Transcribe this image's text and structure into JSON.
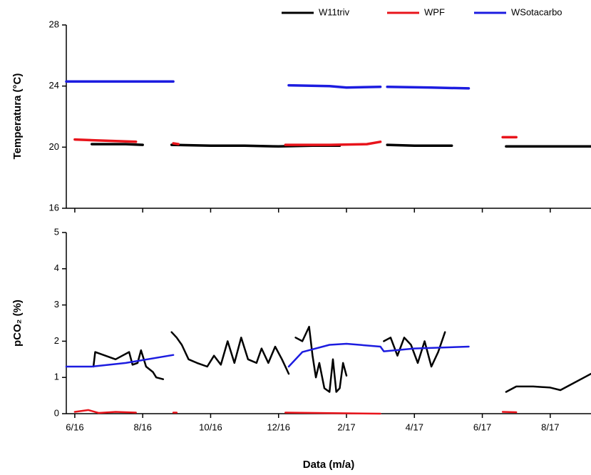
{
  "chart_data": [
    {
      "type": "line",
      "ylabel": "Temperatura (°C)",
      "xlim": [
        -0.25,
        15.2
      ],
      "xticks": [
        {
          "value": 0,
          "label": "6/16"
        },
        {
          "value": 2,
          "label": "8/16"
        },
        {
          "value": 4,
          "label": "10/16"
        },
        {
          "value": 6,
          "label": "12/16"
        },
        {
          "value": 8,
          "label": "2/17"
        },
        {
          "value": 10,
          "label": "4/17"
        },
        {
          "value": 12,
          "label": "6/17"
        },
        {
          "value": 14,
          "label": "8/17"
        }
      ],
      "ylim": [
        16,
        28
      ],
      "yticks": [
        16,
        20,
        24,
        28
      ],
      "legend": "top-right",
      "series": [
        {
          "name": "W11triv",
          "color": "#000000",
          "x": [
            0.5,
            1.0,
            1.5,
            2.0,
            2.4,
            2.85,
            4,
            5,
            6,
            7,
            7.8,
            8.5,
            9.2,
            10,
            11.1,
            12,
            12.7,
            14,
            15.2
          ],
          "values": [
            20.2,
            20.2,
            20.2,
            20.15,
            null,
            20.15,
            20.1,
            20.1,
            20.05,
            20.1,
            20.1,
            null,
            20.15,
            20.1,
            20.1,
            null,
            20.05,
            20.05,
            20.05
          ]
        },
        {
          "name": "WPF",
          "color": "#e8141b",
          "x": [
            0,
            0.6,
            1.2,
            1.8,
            2.4,
            2.9,
            3.05,
            4.5,
            6.2,
            7.5,
            8.6,
            9.0,
            10.5,
            12.6,
            13.0
          ],
          "values": [
            20.5,
            20.45,
            20.4,
            20.35,
            null,
            20.25,
            20.2,
            null,
            20.15,
            20.15,
            20.2,
            20.35,
            null,
            20.65,
            20.65
          ]
        },
        {
          "name": "WSotacarbo",
          "color": "#1c1ce0",
          "x": [
            -0.25,
            1.5,
            2.9,
            4.5,
            6.3,
            7.5,
            8.0,
            9.0,
            9.1,
            9.2,
            10.5,
            11.6
          ],
          "values": [
            24.3,
            24.3,
            24.3,
            null,
            24.05,
            24.0,
            23.9,
            23.95,
            null,
            23.95,
            23.9,
            23.85
          ]
        }
      ]
    },
    {
      "type": "line",
      "ylabel": "pCO₂ (%)",
      "xlabel": "Data (m/a)",
      "xlim": [
        -0.25,
        15.2
      ],
      "xticks": [
        {
          "value": 0,
          "label": "6/16"
        },
        {
          "value": 2,
          "label": "8/16"
        },
        {
          "value": 4,
          "label": "10/16"
        },
        {
          "value": 6,
          "label": "12/16"
        },
        {
          "value": 8,
          "label": "2/17"
        },
        {
          "value": 10,
          "label": "4/17"
        },
        {
          "value": 12,
          "label": "6/17"
        },
        {
          "value": 14,
          "label": "8/17"
        }
      ],
      "ylim": [
        0,
        5
      ],
      "yticks": [
        0,
        1,
        2,
        3,
        4,
        5
      ],
      "series": [
        {
          "name": "W11triv",
          "color": "#000000",
          "x": [
            0.55,
            0.6,
            0.9,
            1.2,
            1.4,
            1.6,
            1.7,
            1.85,
            1.95,
            2.1,
            2.3,
            2.4,
            2.6,
            2.7,
            2.85,
            3.0,
            3.15,
            3.35,
            3.6,
            3.9,
            4.1,
            4.3,
            4.5,
            4.7,
            4.9,
            5.1,
            5.35,
            5.5,
            5.7,
            5.9,
            6.1,
            6.2,
            6.3,
            6.4,
            6.5,
            6.7,
            6.9,
            7.0,
            7.1,
            7.2,
            7.35,
            7.5,
            7.6,
            7.7,
            7.8,
            7.9,
            8.0,
            8.5,
            9.1,
            9.3,
            9.5,
            9.7,
            9.9,
            10.1,
            10.3,
            10.5,
            10.7,
            10.9,
            12,
            12.7,
            13.0,
            13.5,
            14.0,
            14.3,
            14.6,
            15.0,
            15.2
          ],
          "values": [
            1.3,
            1.7,
            1.6,
            1.5,
            1.6,
            1.7,
            1.35,
            1.4,
            1.75,
            1.3,
            1.15,
            1.0,
            0.95,
            null,
            2.25,
            2.1,
            1.9,
            1.5,
            1.4,
            1.3,
            1.6,
            1.35,
            2.0,
            1.4,
            2.1,
            1.5,
            1.4,
            1.8,
            1.4,
            1.85,
            1.5,
            1.3,
            1.1,
            null,
            2.1,
            2.0,
            2.4,
            1.6,
            1.0,
            1.4,
            0.7,
            0.6,
            1.5,
            0.6,
            0.7,
            1.4,
            1.05,
            null,
            2.0,
            2.1,
            1.6,
            2.1,
            1.9,
            1.4,
            2.0,
            1.3,
            1.7,
            2.25,
            null,
            0.6,
            0.75,
            0.75,
            0.72,
            0.65,
            0.8,
            1.0,
            1.1
          ]
        },
        {
          "name": "WPF",
          "color": "#e8141b",
          "x": [
            0,
            0.4,
            0.7,
            1.2,
            1.8,
            2.4,
            2.9,
            3.0,
            4.5,
            6.2,
            9.0,
            10.5,
            12.6,
            13.0
          ],
          "values": [
            0.05,
            0.1,
            0.02,
            0.05,
            0.03,
            null,
            0.03,
            0.03,
            null,
            0.03,
            0.0,
            null,
            0.05,
            0.04
          ]
        },
        {
          "name": "WSotacarbo",
          "color": "#1c1ce0",
          "x": [
            -0.25,
            0.5,
            1.5,
            2.9,
            4.5,
            6.3,
            6.7,
            7.5,
            8.0,
            9.0,
            9.1,
            10.0,
            11.6
          ],
          "values": [
            1.3,
            1.3,
            1.4,
            1.62,
            null,
            1.3,
            1.7,
            1.9,
            1.93,
            1.85,
            1.72,
            1.8,
            1.85
          ]
        }
      ]
    }
  ]
}
